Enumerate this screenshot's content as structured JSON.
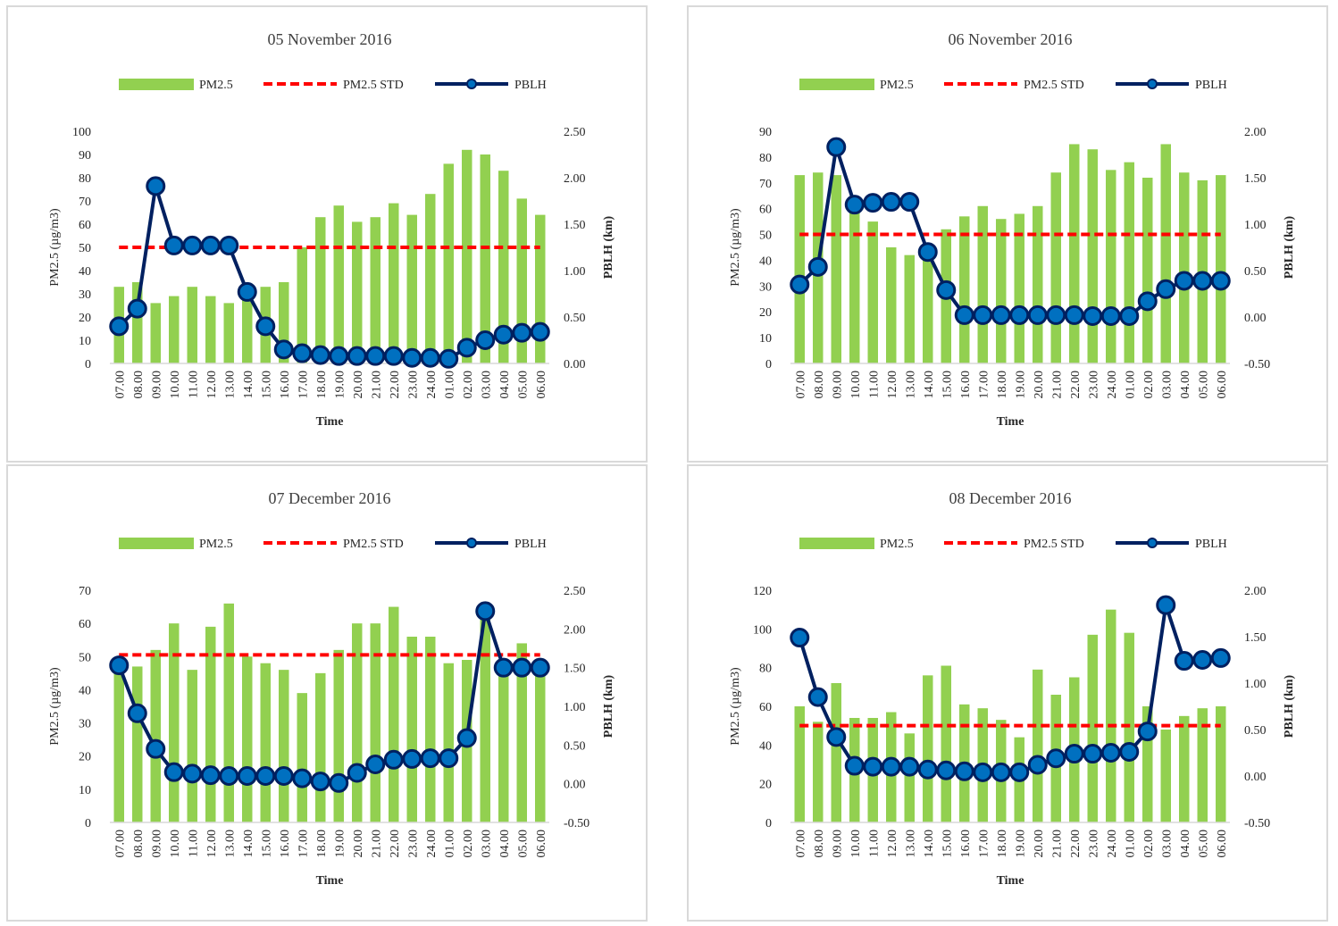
{
  "colors": {
    "bar": "#92d050",
    "std": "#ff0000",
    "line": "#002060",
    "marker_fill": "#0070c0",
    "axis": "#d9d9d9"
  },
  "common": {
    "time_labels": [
      "07.00",
      "08.00",
      "09.00",
      "10.00",
      "11.00",
      "12.00",
      "13.00",
      "14.00",
      "15.00",
      "16.00",
      "17.00",
      "18.00",
      "19.00",
      "20.00",
      "21.00",
      "22.00",
      "23.00",
      "24.00",
      "01.00",
      "02.00",
      "03.00",
      "04.00",
      "05.00",
      "06.00"
    ],
    "xlabel": "Time",
    "ylabel_left": "PM2.5 (µg/m3)",
    "ylabel_right": "PBLH (km)",
    "legend": [
      "PM2.5",
      "PM2.5 STD",
      "PBLH"
    ]
  },
  "chart_data": [
    {
      "type": "bar+line",
      "title": "05 November 2016",
      "categories": [
        "07.00",
        "08.00",
        "09.00",
        "10.00",
        "11.00",
        "12.00",
        "13.00",
        "14.00",
        "15.00",
        "16.00",
        "17.00",
        "18.00",
        "19.00",
        "20.00",
        "21.00",
        "22.00",
        "23.00",
        "24.00",
        "01.00",
        "02.00",
        "03.00",
        "04.00",
        "05.00",
        "06.00"
      ],
      "series": [
        {
          "name": "PM2.5",
          "axis": "left",
          "values": [
            33,
            35,
            26,
            29,
            33,
            29,
            26,
            30,
            33,
            35,
            50,
            63,
            68,
            61,
            63,
            69,
            64,
            73,
            86,
            92,
            90,
            83,
            71,
            64
          ]
        },
        {
          "name": "PM2.5 STD",
          "axis": "left",
          "values": [
            50,
            50,
            50,
            50,
            50,
            50,
            50,
            50,
            50,
            50,
            50,
            50,
            50,
            50,
            50,
            50,
            50,
            50,
            50,
            50,
            50,
            50,
            50,
            50
          ]
        },
        {
          "name": "PBLH",
          "axis": "right",
          "values": [
            0.4,
            0.59,
            1.91,
            1.27,
            1.27,
            1.27,
            1.27,
            0.77,
            0.4,
            0.15,
            0.11,
            0.09,
            0.08,
            0.08,
            0.08,
            0.08,
            0.06,
            0.06,
            0.05,
            0.17,
            0.25,
            0.31,
            0.33,
            0.34
          ]
        }
      ],
      "ylabel": "PM2.5 (µg/m3)",
      "y2label": "PBLH (km)",
      "xlabel": "Time",
      "ylim": [
        0,
        100
      ],
      "ystep": 10,
      "y2lim": [
        0,
        2.5
      ],
      "y2step": 0.5,
      "y2_tick_labels": [
        "0.00",
        "0.50",
        "1.00",
        "1.50",
        "2.00",
        "2.50"
      ]
    },
    {
      "type": "bar+line",
      "title": "06 November 2016",
      "categories": [
        "07.00",
        "08.00",
        "09.00",
        "10.00",
        "11.00",
        "12.00",
        "13.00",
        "14.00",
        "15.00",
        "16.00",
        "17.00",
        "18.00",
        "19.00",
        "20.00",
        "21.00",
        "22.00",
        "23.00",
        "24.00",
        "01.00",
        "02.00",
        "03.00",
        "04.00",
        "05.00",
        "06.00"
      ],
      "series": [
        {
          "name": "PM2.5",
          "axis": "left",
          "values": [
            73,
            74,
            73,
            62,
            55,
            45,
            42,
            44,
            52,
            57,
            61,
            56,
            58,
            61,
            74,
            85,
            83,
            75,
            78,
            72,
            85,
            74,
            71,
            73
          ]
        },
        {
          "name": "PM2.5 STD",
          "axis": "left",
          "values": [
            50,
            50,
            50,
            50,
            50,
            50,
            50,
            50,
            50,
            50,
            50,
            50,
            50,
            50,
            50,
            50,
            50,
            50,
            50,
            50,
            50,
            50,
            50,
            50
          ]
        },
        {
          "name": "PBLH",
          "axis": "right",
          "values": [
            0.35,
            0.54,
            1.83,
            1.21,
            1.23,
            1.24,
            1.24,
            0.7,
            0.29,
            0.02,
            0.02,
            0.02,
            0.02,
            0.02,
            0.02,
            0.02,
            0.01,
            0.01,
            0.01,
            0.17,
            0.3,
            0.39,
            0.39,
            0.39
          ]
        }
      ],
      "ylabel": "PM2.5 (µg/m3)",
      "y2label": "PBLH (km)",
      "xlabel": "Time",
      "ylim": [
        0,
        90
      ],
      "ystep": 10,
      "y2lim": [
        -0.5,
        2.0
      ],
      "y2step": 0.5,
      "y2_tick_labels": [
        "-0.50",
        "0.00",
        "0.50",
        "1.00",
        "1.50",
        "2.00"
      ]
    },
    {
      "type": "bar+line",
      "title": "07 December 2016",
      "categories": [
        "07.00",
        "08.00",
        "09.00",
        "10.00",
        "11.00",
        "12.00",
        "13.00",
        "14.00",
        "15.00",
        "16.00",
        "17.00",
        "18.00",
        "19.00",
        "20.00",
        "21.00",
        "22.00",
        "23.00",
        "24.00",
        "01.00",
        "02.00",
        "03.00",
        "04.00",
        "05.00",
        "06.00"
      ],
      "series": [
        {
          "name": "PM2.5",
          "axis": "left",
          "values": [
            47,
            47,
            52,
            60,
            46,
            59,
            66,
            50,
            48,
            46,
            39,
            45,
            52,
            60,
            60,
            65,
            56,
            56,
            48,
            49,
            63,
            47,
            54,
            47
          ]
        },
        {
          "name": "PM2.5 STD",
          "axis": "left",
          "values": [
            50.5,
            50.5,
            50.5,
            50.5,
            50.5,
            50.5,
            50.5,
            50.5,
            50.5,
            50.5,
            50.5,
            50.5,
            50.5,
            50.5,
            50.5,
            50.5,
            50.5,
            50.5,
            50.5,
            50.5,
            50.5,
            50.5,
            50.5,
            50.5
          ]
        },
        {
          "name": "PBLH",
          "axis": "right",
          "values": [
            1.53,
            0.91,
            0.45,
            0.15,
            0.13,
            0.11,
            0.1,
            0.1,
            0.1,
            0.1,
            0.07,
            0.03,
            0.01,
            0.14,
            0.25,
            0.31,
            0.32,
            0.33,
            0.33,
            0.59,
            2.23,
            1.5,
            1.5,
            1.5
          ]
        }
      ],
      "ylabel": "PM2.5 (µg/m3)",
      "y2label": "PBLH (km)",
      "xlabel": "Time",
      "ylim": [
        0,
        70
      ],
      "ystep": 10,
      "y2lim": [
        -0.5,
        2.5
      ],
      "y2step": 0.5,
      "y2_tick_labels": [
        "-0.50",
        "0.00",
        "0.50",
        "1.00",
        "1.50",
        "2.00",
        "2.50"
      ]
    },
    {
      "type": "bar+line",
      "title": "08 December 2016",
      "categories": [
        "07.00",
        "08.00",
        "09.00",
        "10.00",
        "11.00",
        "12.00",
        "13.00",
        "14.00",
        "15.00",
        "16.00",
        "17.00",
        "18.00",
        "19.00",
        "20.00",
        "21.00",
        "22.00",
        "23.00",
        "24.00",
        "01.00",
        "02.00",
        "03.00",
        "04.00",
        "05.00",
        "06.00"
      ],
      "series": [
        {
          "name": "PM2.5",
          "axis": "left",
          "values": [
            60,
            52,
            72,
            54,
            54,
            57,
            46,
            76,
            81,
            61,
            59,
            53,
            44,
            79,
            66,
            75,
            97,
            110,
            98,
            60,
            48,
            55,
            59,
            60
          ]
        },
        {
          "name": "PM2.5 STD",
          "axis": "left",
          "values": [
            50,
            50,
            50,
            50,
            50,
            50,
            50,
            50,
            50,
            50,
            50,
            50,
            50,
            50,
            50,
            50,
            50,
            50,
            50,
            50,
            50,
            50,
            50,
            50
          ]
        },
        {
          "name": "PBLH",
          "axis": "right",
          "values": [
            1.49,
            0.85,
            0.42,
            0.11,
            0.1,
            0.1,
            0.1,
            0.07,
            0.06,
            0.05,
            0.04,
            0.04,
            0.04,
            0.12,
            0.19,
            0.24,
            0.24,
            0.25,
            0.26,
            0.48,
            1.84,
            1.24,
            1.25,
            1.27
          ]
        }
      ],
      "ylabel": "PM2.5 (µg/m3)",
      "y2label": "PBLH (km)",
      "xlabel": "Time",
      "ylim": [
        0,
        120
      ],
      "ystep": 20,
      "y2lim": [
        -0.5,
        2.0
      ],
      "y2step": 0.5,
      "y2_tick_labels": [
        "-0.50",
        "0.00",
        "0.50",
        "1.00",
        "1.50",
        "2.00"
      ]
    }
  ]
}
